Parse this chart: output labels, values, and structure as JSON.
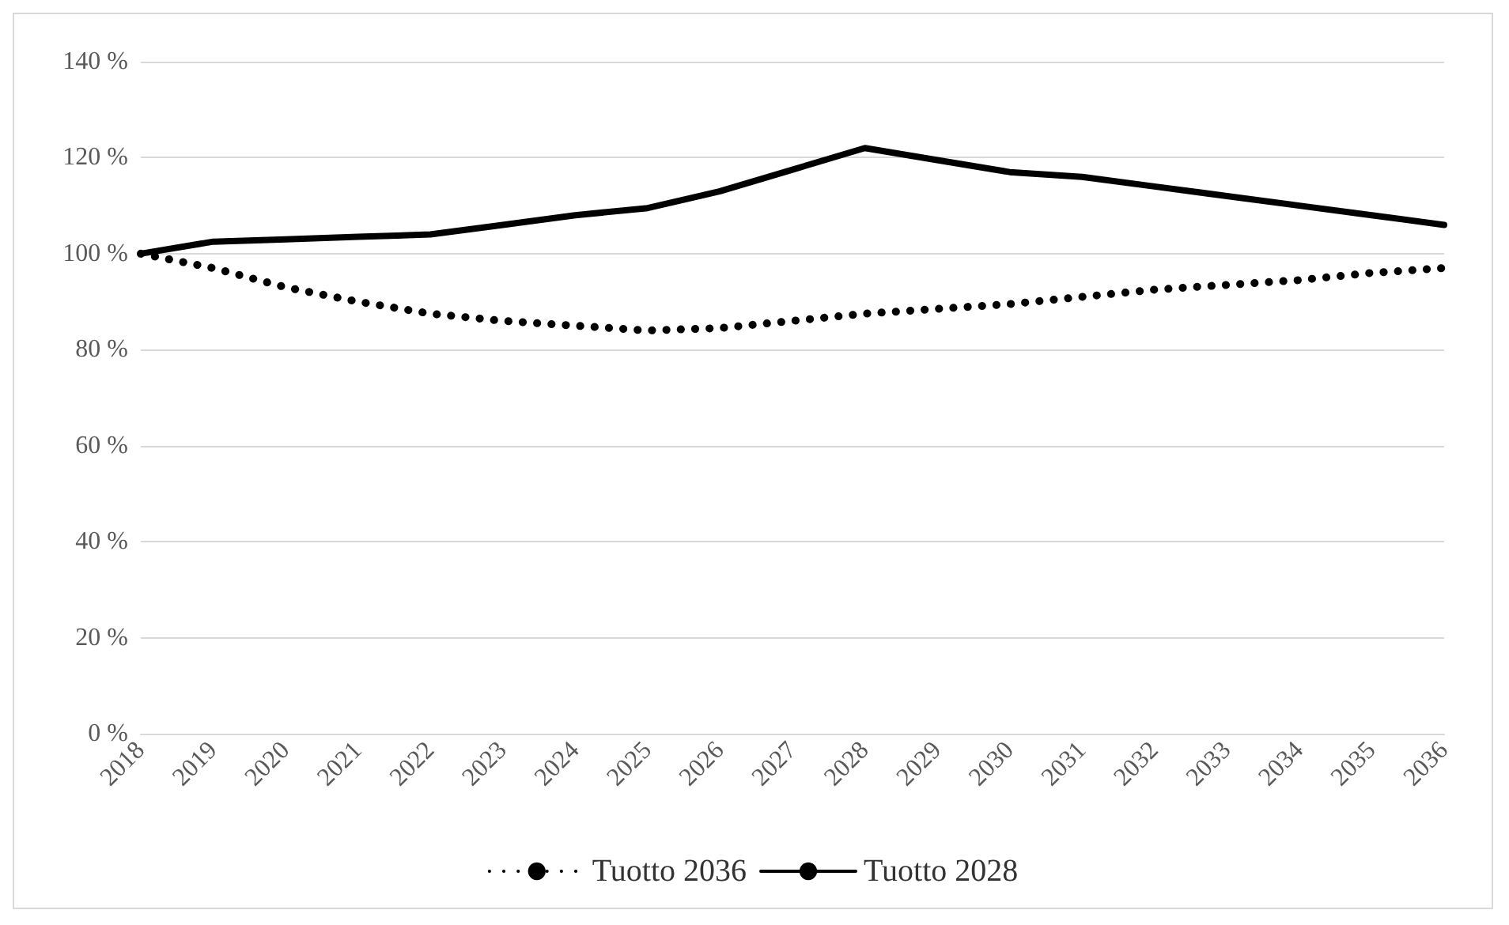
{
  "chart_data": {
    "type": "line",
    "categories": [
      "2018",
      "2019",
      "2020",
      "2021",
      "2022",
      "2023",
      "2024",
      "2025",
      "2026",
      "2027",
      "2028",
      "2029",
      "2030",
      "2031",
      "2032",
      "2033",
      "2034",
      "2035",
      "2036"
    ],
    "series": [
      {
        "name": "Tuotto 2036",
        "color": "#000000",
        "line_style": "dotted",
        "values": [
          100,
          97,
          93,
          90,
          87.5,
          86,
          85,
          84,
          84.5,
          86,
          87.5,
          88.5,
          89.5,
          91,
          92.5,
          93.5,
          94.5,
          96,
          97
        ]
      },
      {
        "name": "Tuotto 2028",
        "color": "#000000",
        "line_style": "solid",
        "values": [
          100,
          102.5,
          103,
          103.5,
          104,
          106,
          108,
          109.5,
          113,
          117.5,
          122,
          119.5,
          117,
          116,
          114,
          112,
          110,
          108,
          106
        ]
      }
    ],
    "ylim": [
      0,
      140
    ],
    "yticks": [
      {
        "value": 0,
        "label": "0 %"
      },
      {
        "value": 20,
        "label": "20 %"
      },
      {
        "value": 40,
        "label": "40 %"
      },
      {
        "value": 60,
        "label": "60 %"
      },
      {
        "value": 80,
        "label": "80 %"
      },
      {
        "value": 100,
        "label": "100 %"
      },
      {
        "value": 120,
        "label": "120 %"
      },
      {
        "value": 140,
        "label": "140 %"
      }
    ],
    "grid": "y",
    "legend": "bottom",
    "marker": "none"
  }
}
